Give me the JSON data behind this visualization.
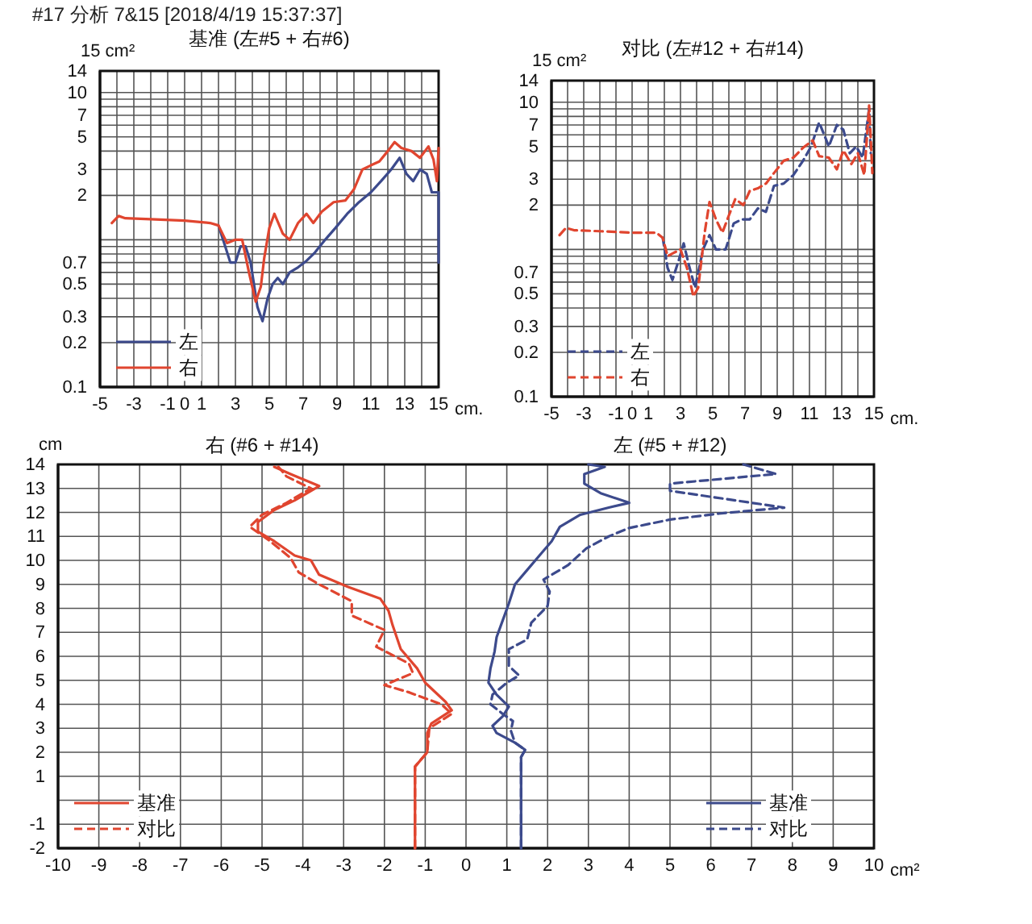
{
  "chart_data": [
    {
      "type": "other",
      "title": "#17 分析 7&15 [2018/4/19 15:37:37]"
    },
    {
      "type": "line",
      "title": "基准 (左#5 + 右#6)",
      "xlabel": "cm.",
      "ylabel": "15 cm²",
      "log": true,
      "grid": true,
      "legend": "bottom left",
      "line_style": "solid",
      "xlim": [
        -5,
        15
      ],
      "ylim": [
        0.1,
        14
      ],
      "xticks": [
        -5,
        {
          "value": -4,
          "label": null
        },
        -3,
        {
          "value": -2,
          "label": null
        },
        -1,
        0,
        1,
        {
          "value": 2,
          "label": null
        },
        3,
        {
          "value": 4,
          "label": null
        },
        5,
        {
          "value": 6,
          "label": null
        },
        7,
        {
          "value": 8,
          "label": null
        },
        9,
        {
          "value": 10,
          "label": null
        },
        11,
        {
          "value": 12,
          "label": null
        },
        13,
        {
          "value": 14,
          "label": null
        },
        15
      ],
      "yticks": [
        0.1,
        0.2,
        0.3,
        {
          "value": 0.4,
          "label": null
        },
        0.5,
        {
          "value": 0.6,
          "label": null
        },
        0.7,
        {
          "value": 0.8,
          "label": null
        },
        {
          "value": 0.9,
          "label": null
        },
        {
          "value": 1,
          "label": null
        },
        2,
        3,
        {
          "value": 4,
          "label": null
        },
        5,
        {
          "value": 6,
          "label": null
        },
        7,
        {
          "value": 8,
          "label": null
        },
        {
          "value": 9,
          "label": null
        },
        10,
        14
      ],
      "series": [
        {
          "name": "左",
          "color": "#3c4a8c",
          "x": [
            2.0,
            2.4,
            2.7,
            3.0,
            3.3,
            3.6,
            3.9,
            4.3,
            4.6,
            4.9,
            5.2,
            5.5,
            5.8,
            6.2,
            6.7,
            7.2,
            7.7,
            8.3,
            8.9,
            9.6,
            10.3,
            11.0,
            11.6,
            12.2,
            12.7,
            13.1,
            13.5,
            13.9,
            14.3,
            14.6,
            15,
            15
          ],
          "values": [
            1.25,
            0.9,
            0.7,
            0.7,
            0.9,
            0.9,
            0.7,
            0.35,
            0.28,
            0.4,
            0.5,
            0.55,
            0.5,
            0.6,
            0.65,
            0.72,
            0.82,
            1.0,
            1.2,
            1.5,
            1.8,
            2.1,
            2.5,
            3.0,
            3.6,
            2.8,
            2.5,
            3.0,
            2.8,
            2.1,
            2.1,
            0.7
          ]
        },
        {
          "name": "右",
          "color": "#e0452f",
          "x": [
            -4.3,
            -3.9,
            -3.5,
            -2,
            0,
            1.5,
            2.0,
            2.5,
            3.0,
            3.4,
            3.8,
            4.2,
            4.5,
            4.7,
            5.0,
            5.3,
            5.8,
            6.2,
            6.7,
            7.2,
            7.6,
            8.1,
            8.8,
            9.5,
            10.0,
            10.5,
            11.0,
            11.5,
            12.0,
            12.4,
            12.8,
            13.4,
            13.9,
            14.4,
            14.7,
            14.9,
            15
          ],
          "values": [
            1.3,
            1.45,
            1.4,
            1.38,
            1.35,
            1.3,
            1.25,
            0.95,
            1.0,
            1.0,
            0.6,
            0.38,
            0.48,
            0.75,
            1.2,
            1.5,
            1.1,
            1.0,
            1.3,
            1.5,
            1.3,
            1.55,
            1.8,
            1.85,
            2.2,
            3.0,
            3.2,
            3.4,
            4.0,
            4.6,
            4.2,
            4.0,
            3.6,
            4.3,
            3.5,
            2.5,
            4.2
          ]
        }
      ]
    },
    {
      "type": "line",
      "title": "对比 (左#12 + 右#14)",
      "xlabel": "cm.",
      "ylabel": "15 cm²",
      "log": true,
      "grid": true,
      "legend": "bottom left",
      "line_style": "dashed",
      "xlim": [
        -5,
        15
      ],
      "ylim": [
        0.1,
        14
      ],
      "xticks": [
        -5,
        {
          "value": -4,
          "label": null
        },
        -3,
        {
          "value": -2,
          "label": null
        },
        -1,
        0,
        1,
        {
          "value": 2,
          "label": null
        },
        3,
        {
          "value": 4,
          "label": null
        },
        5,
        {
          "value": 6,
          "label": null
        },
        7,
        {
          "value": 8,
          "label": null
        },
        9,
        {
          "value": 10,
          "label": null
        },
        11,
        {
          "value": 12,
          "label": null
        },
        13,
        {
          "value": 14,
          "label": null
        },
        15
      ],
      "yticks": [
        0.1,
        0.2,
        0.3,
        {
          "value": 0.4,
          "label": null
        },
        0.5,
        {
          "value": 0.6,
          "label": null
        },
        0.7,
        {
          "value": 0.8,
          "label": null
        },
        {
          "value": 0.9,
          "label": null
        },
        {
          "value": 1,
          "label": null
        },
        2,
        3,
        {
          "value": 4,
          "label": null
        },
        5,
        {
          "value": 6,
          "label": null
        },
        7,
        {
          "value": 8,
          "label": null
        },
        {
          "value": 9,
          "label": null
        },
        10,
        14
      ],
      "series": [
        {
          "name": "左",
          "color": "#3c4a8c",
          "x": [
            1.9,
            2.2,
            2.5,
            2.9,
            3.2,
            3.5,
            3.9,
            4.4,
            4.8,
            5.2,
            5.8,
            6.3,
            6.8,
            7.3,
            7.8,
            8.3,
            8.8,
            9.4,
            10.0,
            10.6,
            11.1,
            11.6,
            12.2,
            12.7,
            13.1,
            13.5,
            13.9,
            14.3,
            14.7,
            14.8
          ],
          "values": [
            1.2,
            0.75,
            0.62,
            0.85,
            1.1,
            0.8,
            0.55,
            1.0,
            1.25,
            1.0,
            1.0,
            1.5,
            1.6,
            1.6,
            1.9,
            1.8,
            2.7,
            2.8,
            3.2,
            4.0,
            5.0,
            7.3,
            5.0,
            7.0,
            6.5,
            4.5,
            5.0,
            4.2,
            9.0,
            4.5
          ]
        },
        {
          "name": "右",
          "color": "#e0452f",
          "x": [
            -4.5,
            -4.1,
            -3.6,
            -2,
            0,
            1.5,
            1.9,
            2.2,
            2.6,
            3.0,
            3.4,
            3.8,
            4.1,
            4.5,
            4.8,
            5.2,
            5.6,
            6.0,
            6.4,
            6.9,
            7.3,
            7.8,
            8.3,
            8.8,
            9.4,
            10.0,
            10.6,
            11.2,
            11.6,
            12.2,
            12.7,
            13.1,
            13.6,
            14.0,
            14.4,
            14.7,
            14.9
          ],
          "values": [
            1.25,
            1.4,
            1.35,
            1.33,
            1.3,
            1.3,
            1.2,
            0.9,
            0.95,
            1.0,
            0.75,
            0.48,
            0.55,
            1.3,
            2.1,
            1.6,
            1.3,
            1.7,
            2.2,
            2.0,
            2.5,
            2.6,
            2.8,
            3.3,
            4.0,
            4.2,
            4.9,
            5.5,
            4.3,
            4.2,
            3.5,
            4.7,
            3.8,
            4.5,
            3.2,
            9.5,
            3.3
          ]
        }
      ]
    },
    {
      "type": "line",
      "xlabel": "cm²",
      "ylabel": "cm",
      "grid": true,
      "legend": "bottom",
      "xlim": [
        -10,
        10
      ],
      "ylim": [
        -2,
        14
      ],
      "xticks": [
        -10,
        -9,
        -8,
        -7,
        -6,
        -5,
        -4,
        -3,
        -2,
        -1,
        0,
        1,
        2,
        3,
        4,
        5,
        6,
        7,
        8,
        9,
        10
      ],
      "yticks": [
        -2,
        -1,
        {
          "value": 0,
          "label": null
        },
        1,
        2,
        3,
        4,
        5,
        6,
        7,
        8,
        9,
        10,
        11,
        12,
        13,
        14
      ],
      "annotations": [
        "右 (#6 + #14)",
        "左 (#5 + #12)"
      ],
      "series": [
        {
          "name": "基准",
          "color": "#e0452f",
          "line_style": "solid",
          "x": [
            -1.25,
            -1.25,
            -0.95,
            -0.95,
            -0.85,
            -0.35,
            -0.5,
            -1.0,
            -1.2,
            -1.6,
            -1.8,
            -1.9,
            -2.1,
            -2.9,
            -3.6,
            -3.8,
            -4.2,
            -4.7,
            -5.1,
            -5.1,
            -4.7,
            -4.2,
            -3.6,
            -4.3,
            -4.7
          ],
          "values": [
            -2,
            1.4,
            2.0,
            2.8,
            3.2,
            3.75,
            4.1,
            4.9,
            5.5,
            6.3,
            7.3,
            7.9,
            8.4,
            8.9,
            9.4,
            10.0,
            10.2,
            10.8,
            11.2,
            11.6,
            12.1,
            12.5,
            13.1,
            13.6,
            13.9
          ]
        },
        {
          "name": "对比",
          "color": "#e0452f",
          "line_style": "dashed",
          "x": [
            -1.25,
            -1.25,
            -0.95,
            -0.9,
            -0.35,
            -0.6,
            -1.4,
            -2.0,
            -1.3,
            -1.4,
            -2.2,
            -2.0,
            -2.8,
            -2.8,
            -3.6,
            -4.1,
            -4.3,
            -4.8,
            -5.3,
            -5.0,
            -4.4,
            -4.0,
            -3.8,
            -4.4,
            -4.6
          ],
          "values": [
            -2,
            1.4,
            2.0,
            3.0,
            3.6,
            4.0,
            4.5,
            4.8,
            5.3,
            5.7,
            6.4,
            7.1,
            7.7,
            8.3,
            9.0,
            9.5,
            10.1,
            10.8,
            11.4,
            11.9,
            12.4,
            12.8,
            13.0,
            13.5,
            13.9
          ]
        },
        {
          "name": "基准",
          "color": "#3c4a8c",
          "line_style": "solid",
          "x": [
            1.35,
            1.35,
            1.45,
            1.2,
            0.75,
            0.65,
            0.9,
            1.05,
            0.75,
            0.55,
            0.6,
            0.7,
            0.75,
            0.9,
            1.05,
            1.2,
            1.5,
            1.8,
            2.1,
            2.3,
            2.8,
            3.5,
            4.0,
            3.3,
            2.9,
            2.9,
            3.4,
            3.0
          ],
          "values": [
            -2,
            1.8,
            2.1,
            2.4,
            2.8,
            3.1,
            3.5,
            3.9,
            4.4,
            4.9,
            5.5,
            6.2,
            6.8,
            7.5,
            8.2,
            9.0,
            9.6,
            10.2,
            10.8,
            11.4,
            11.9,
            12.2,
            12.4,
            12.8,
            13.2,
            13.6,
            13.9,
            14
          ]
        },
        {
          "name": "对比",
          "color": "#3c4a8c",
          "line_style": "dashed",
          "x": [
            1.35,
            1.35,
            1.45,
            1.2,
            1.1,
            1.15,
            0.9,
            0.6,
            0.65,
            1.0,
            1.3,
            1.05,
            1.05,
            1.5,
            1.6,
            2.0,
            2.05,
            1.9,
            2.5,
            2.95,
            3.5,
            4.0,
            5.0,
            6.2,
            7.8,
            5.0,
            5.0,
            7.6,
            6.8
          ],
          "values": [
            -2,
            1.8,
            2.1,
            2.4,
            2.9,
            3.3,
            3.6,
            4.0,
            4.4,
            4.9,
            5.2,
            5.6,
            6.3,
            6.7,
            7.4,
            8.1,
            8.7,
            9.2,
            9.8,
            10.5,
            11.0,
            11.35,
            11.7,
            11.95,
            12.2,
            12.9,
            13.2,
            13.6,
            14
          ]
        }
      ]
    }
  ]
}
